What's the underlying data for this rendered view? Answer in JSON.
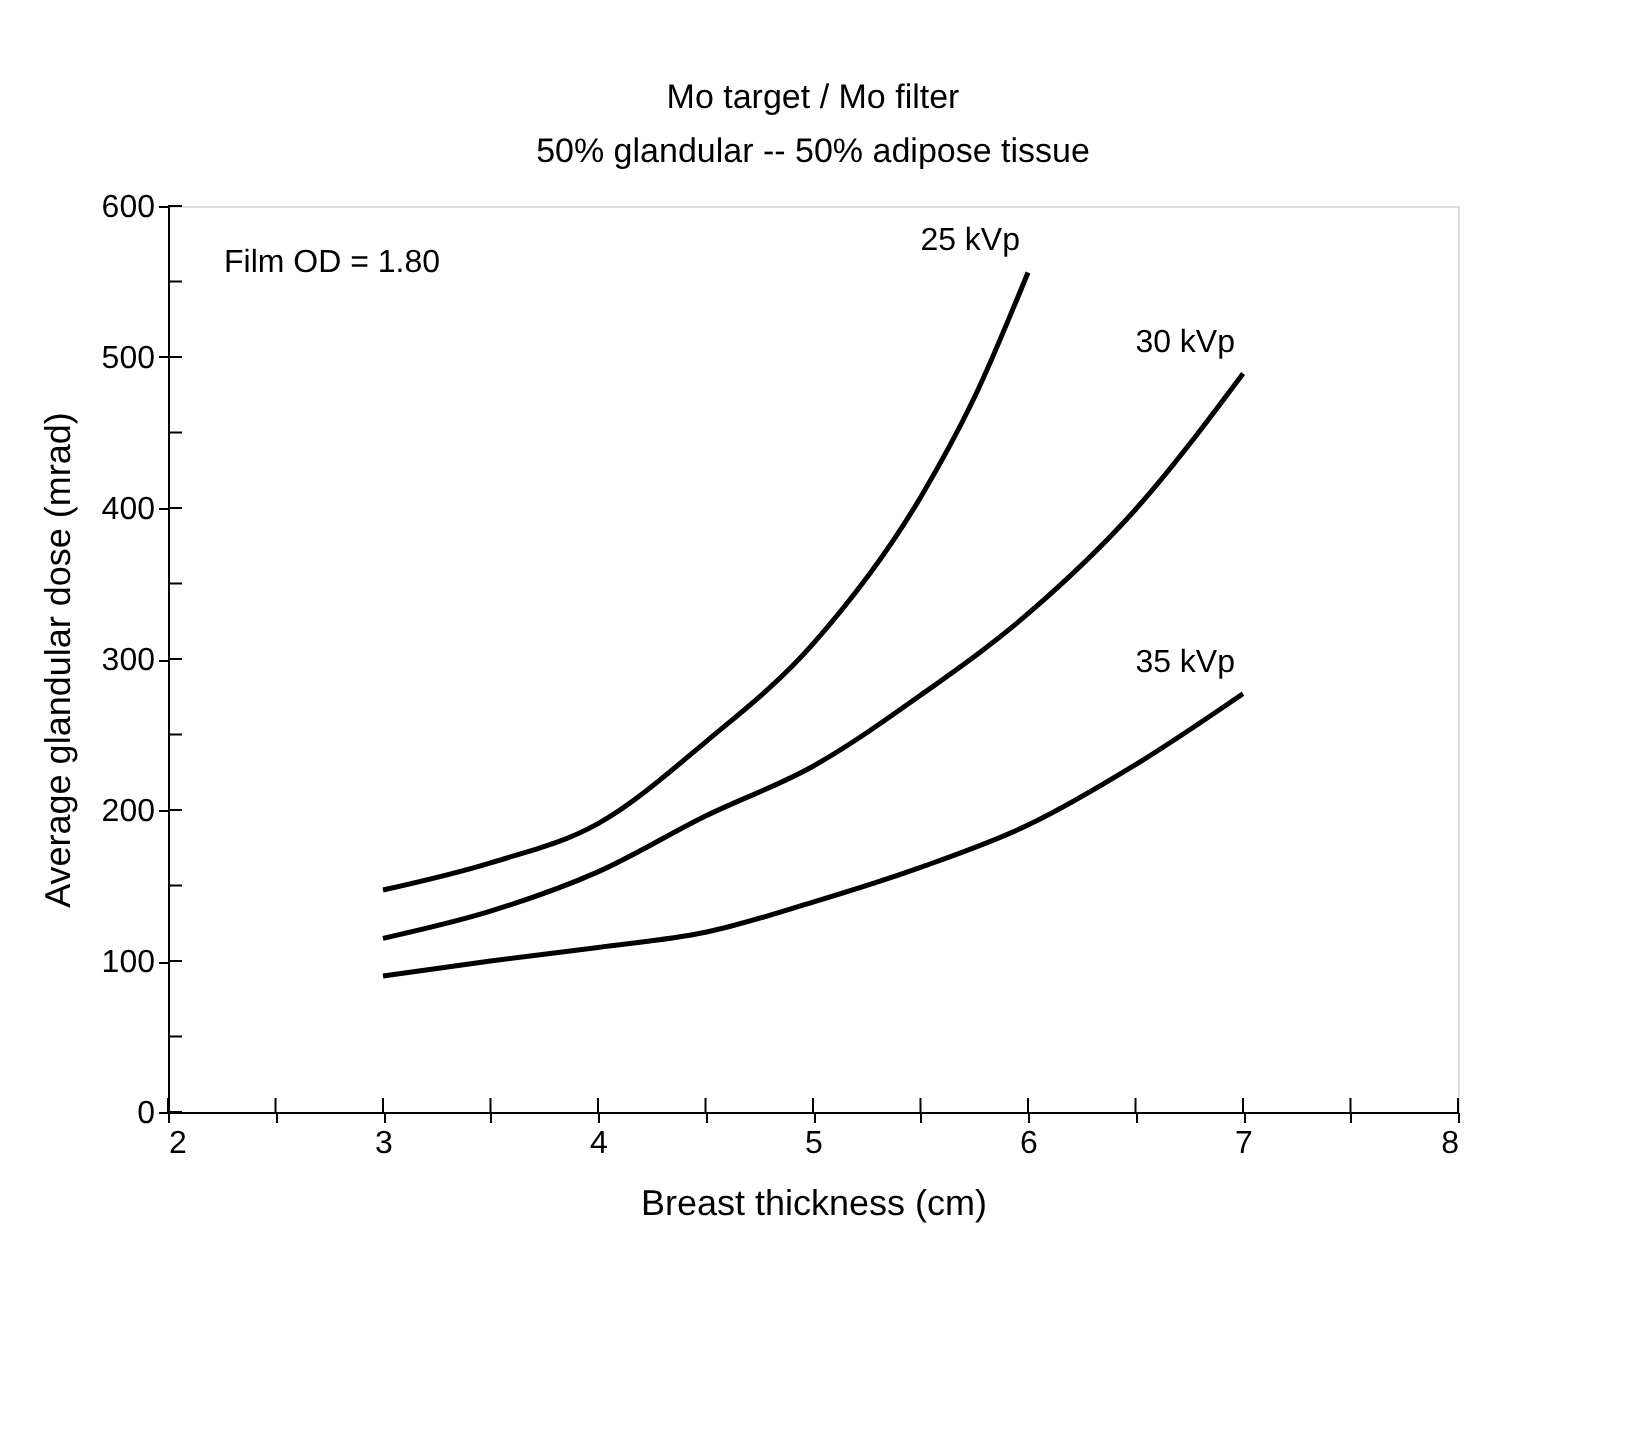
{
  "chart_data": {
    "type": "line",
    "title": "Mo target / Mo filter",
    "subtitle": "50% glandular -- 50% adipose tissue",
    "xlabel": "Breast thickness (cm)",
    "ylabel": "Average glandular dose (mrad)",
    "x": [
      3,
      3.5,
      4,
      4.5,
      5,
      5.5,
      6,
      6.5,
      7
    ],
    "series": [
      {
        "name": "25 kVp",
        "color": "#000000",
        "x": [
          3,
          3.5,
          4,
          4.5,
          5,
          5.5,
          5.75,
          6
        ],
        "values": [
          147,
          165,
          191,
          245,
          310,
          407,
          473,
          556
        ]
      },
      {
        "name": "30 kVp",
        "color": "#000000",
        "values": [
          115,
          133,
          159,
          196,
          229,
          276,
          330,
          399,
          489
        ]
      },
      {
        "name": "35 kVp",
        "color": "#000000",
        "values": [
          90,
          100,
          109,
          119,
          139,
          162,
          190,
          230,
          277
        ]
      }
    ],
    "xlim": [
      2,
      8
    ],
    "ylim": [
      0,
      600
    ],
    "xticks": [
      2,
      {
        "value": 2.5,
        "label": null
      },
      3,
      {
        "value": 3.5,
        "label": null
      },
      4,
      {
        "value": 4.5,
        "label": null
      },
      5,
      {
        "value": 5.5,
        "label": null
      },
      6,
      {
        "value": 6.5,
        "label": null
      },
      7,
      {
        "value": 7.5,
        "label": null
      },
      8
    ],
    "yticks": [
      0,
      {
        "value": 50,
        "label": null
      },
      100,
      {
        "value": 150,
        "label": null
      },
      200,
      {
        "value": 250,
        "label": null
      },
      300,
      {
        "value": 350,
        "label": null
      },
      400,
      {
        "value": 450,
        "label": null
      },
      500,
      {
        "value": 550,
        "label": null
      },
      600
    ],
    "annotations": [
      "Film OD = 1.80"
    ],
    "grid": false,
    "legend": false,
    "marker": "none",
    "line_style": "solid"
  }
}
